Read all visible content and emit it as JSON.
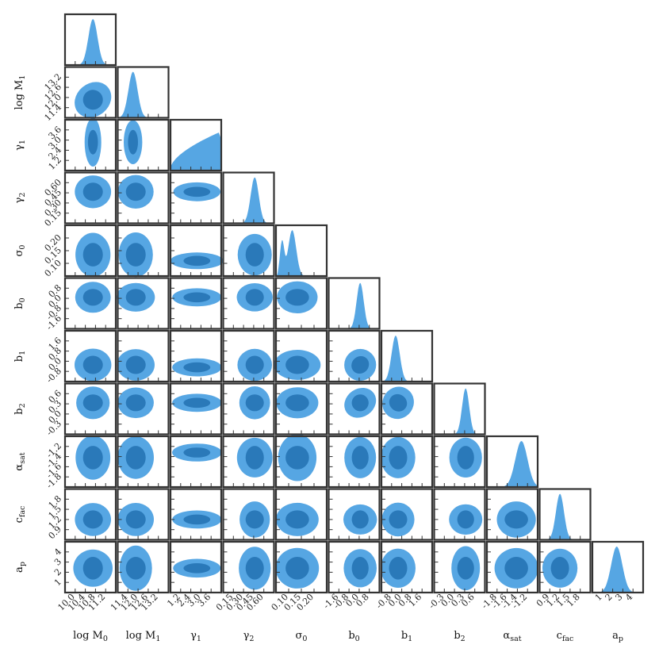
{
  "chart_data": {
    "type": "corner",
    "title": "",
    "colors": {
      "outer": "#56a6e3",
      "inner": "#2a79b9",
      "frame": "#333333"
    },
    "parameters": [
      {
        "id": "logM0",
        "label": "log M",
        "sub": "0",
        "range": [
          10.0,
          11.4
        ],
        "ticks": [
          "10.0",
          "10.4",
          "10.8",
          "11.2"
        ],
        "ytick_text": [],
        "peak": 0.55,
        "width": 0.09
      },
      {
        "id": "logM1",
        "label": "log M",
        "sub": "1",
        "range": [
          11.2,
          14.3
        ],
        "ticks": [
          "11.4",
          "12.0",
          "12.6",
          "13.2"
        ],
        "ytick_text": [
          "11.4",
          "12.0",
          "12.6",
          "13.2"
        ],
        "peak": 0.3,
        "width": 0.09
      },
      {
        "id": "gamma1",
        "label": "γ",
        "sub": "1",
        "range": [
          0.8,
          4.0
        ],
        "ticks": [
          "1.2",
          "2.4",
          "3.0",
          "3.6"
        ],
        "ytick_text": [
          "1.2",
          "2.4",
          "3.0",
          "3.6"
        ],
        "peak": 0.9,
        "width": 0.4
      },
      {
        "id": "gamma2",
        "label": "γ",
        "sub": "2",
        "range": [
          0.1,
          0.75
        ],
        "ticks": [
          "0.15",
          "0.30",
          "0.45",
          "0.60"
        ],
        "ytick_text": [
          "0.15",
          "0.30",
          "0.45",
          "0.60"
        ],
        "peak": 0.62,
        "width": 0.08
      },
      {
        "id": "sigma0",
        "label": "σ",
        "sub": "0",
        "range": [
          0.05,
          0.25
        ],
        "ticks": [
          "0.10",
          "0.15",
          "0.20"
        ],
        "ytick_text": [
          "0.10",
          "0.15",
          "0.20"
        ],
        "peak": 0.3,
        "width": 0.12
      },
      {
        "id": "b0",
        "label": "b",
        "sub": "0",
        "range": [
          -1.9,
          1.0
        ],
        "ticks": [
          "-1.6",
          "-0.8",
          "0.0",
          "0.8"
        ],
        "ytick_text": [
          "-1.6",
          "-0.8",
          "0.0",
          "0.8"
        ],
        "peak": 0.62,
        "width": 0.07
      },
      {
        "id": "b1",
        "label": "b",
        "sub": "1",
        "range": [
          -1.0,
          2.4
        ],
        "ticks": [
          "-0.8",
          "0.0",
          "0.8",
          "1.6"
        ],
        "ytick_text": [
          "-0.8",
          "0.0",
          "0.8",
          "1.6"
        ],
        "peak": 0.28,
        "width": 0.08
      },
      {
        "id": "b2",
        "label": "b",
        "sub": "2",
        "range": [
          -0.35,
          1.05
        ],
        "ticks": [
          "-0.3",
          "0.0",
          "0.3",
          "0.6"
        ],
        "ytick_text": [
          "-0.3",
          "0.0",
          "0.3",
          "0.6"
        ],
        "peak": 0.62,
        "width": 0.07
      },
      {
        "id": "alpha_sat",
        "label": "α",
        "sub": "sat",
        "range": [
          -1.9,
          -0.9
        ],
        "ticks": [
          "-1.8",
          "-1.6",
          "-1.4",
          "-1.2"
        ],
        "ytick_text": [
          "-1.8",
          "-1.6",
          "-1.4",
          "-1.2"
        ],
        "peak": 0.68,
        "width": 0.12
      },
      {
        "id": "c_fac",
        "label": "c",
        "sub": "fac",
        "range": [
          0.8,
          2.0
        ],
        "ticks": [
          "0.9",
          "1.2",
          "1.5",
          "1.8"
        ],
        "ytick_text": [
          "0.9",
          "1.2",
          "1.5",
          "1.8"
        ],
        "peak": 0.4,
        "width": 0.08
      },
      {
        "id": "a_p",
        "label": "a",
        "sub": "p",
        "range": [
          0.8,
          4.6
        ],
        "ticks": [
          "1",
          "2",
          "3",
          "4"
        ],
        "ytick_text": [
          "1",
          "2",
          "3",
          "4"
        ],
        "peak": 0.48,
        "width": 0.11
      }
    ],
    "contour_levels": [
      "68%",
      "95%"
    ]
  }
}
